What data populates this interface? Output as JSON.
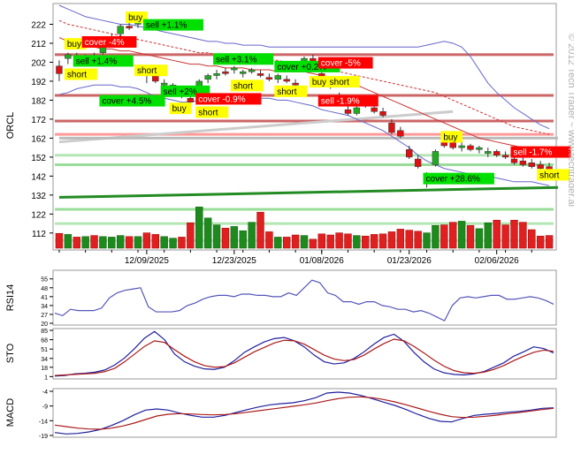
{
  "copyright": "© 2012 Tech Trader ~ www.techtrader.ai",
  "chart_data": [
    {
      "type": "candlestick",
      "ylabel": "ORCL",
      "ylim": [
        104,
        232
      ],
      "yticks": [
        112,
        122,
        132,
        142,
        152,
        162,
        172,
        182,
        192,
        202,
        212,
        222
      ],
      "xtick_labels": [
        "12/09/2025",
        "12/23/2025",
        "01/08/2026",
        "01/23/2026",
        "02/06/2026"
      ],
      "xtick_index": [
        10,
        20,
        30,
        40,
        50
      ],
      "candles": [
        {
          "o": 200,
          "h": 203,
          "l": 192,
          "c": 196
        },
        {
          "o": 204,
          "h": 207,
          "l": 201,
          "c": 206
        },
        {
          "o": 205,
          "h": 207,
          "l": 202,
          "c": 203
        },
        {
          "o": 203,
          "h": 206,
          "l": 201,
          "c": 204
        },
        {
          "o": 205,
          "h": 207,
          "l": 203,
          "c": 204
        },
        {
          "o": 207,
          "h": 211,
          "l": 206,
          "c": 210
        },
        {
          "o": 214,
          "h": 217,
          "l": 212,
          "c": 215
        },
        {
          "o": 217,
          "h": 222,
          "l": 215,
          "c": 221
        },
        {
          "o": 221,
          "h": 224,
          "l": 219,
          "c": 220
        },
        {
          "o": 222,
          "h": 225,
          "l": 220,
          "c": 223
        },
        {
          "o": 196,
          "h": 200,
          "l": 191,
          "c": 195
        },
        {
          "o": 196,
          "h": 198,
          "l": 191,
          "c": 192
        },
        {
          "o": 190,
          "h": 193,
          "l": 187,
          "c": 191
        },
        {
          "o": 188,
          "h": 191,
          "l": 186,
          "c": 190
        },
        {
          "o": 187,
          "h": 189,
          "l": 183,
          "c": 184
        },
        {
          "o": 183,
          "h": 186,
          "l": 179,
          "c": 181
        },
        {
          "o": 182,
          "h": 193,
          "l": 181,
          "c": 192
        },
        {
          "o": 193,
          "h": 196,
          "l": 191,
          "c": 195
        },
        {
          "o": 195,
          "h": 198,
          "l": 193,
          "c": 196
        },
        {
          "o": 197,
          "h": 199,
          "l": 195,
          "c": 196
        },
        {
          "o": 198,
          "h": 200,
          "l": 196,
          "c": 199
        },
        {
          "o": 196,
          "h": 198,
          "l": 194,
          "c": 197
        },
        {
          "o": 197,
          "h": 199,
          "l": 196,
          "c": 198
        },
        {
          "o": 196,
          "h": 198,
          "l": 194,
          "c": 195
        },
        {
          "o": 194,
          "h": 196,
          "l": 192,
          "c": 193
        },
        {
          "o": 193,
          "h": 196,
          "l": 191,
          "c": 195
        },
        {
          "o": 193,
          "h": 195,
          "l": 191,
          "c": 192
        },
        {
          "o": 191,
          "h": 193,
          "l": 189,
          "c": 190
        },
        {
          "o": 198,
          "h": 205,
          "l": 197,
          "c": 204
        },
        {
          "o": 204,
          "h": 206,
          "l": 201,
          "c": 202
        },
        {
          "o": 196,
          "h": 198,
          "l": 193,
          "c": 194
        },
        {
          "o": 191,
          "h": 193,
          "l": 188,
          "c": 189
        },
        {
          "o": 184,
          "h": 186,
          "l": 181,
          "c": 182
        },
        {
          "o": 177,
          "h": 179,
          "l": 174,
          "c": 175
        },
        {
          "o": 175,
          "h": 179,
          "l": 174,
          "c": 178
        },
        {
          "o": 180,
          "h": 182,
          "l": 178,
          "c": 179
        },
        {
          "o": 178,
          "h": 180,
          "l": 175,
          "c": 176
        },
        {
          "o": 176,
          "h": 178,
          "l": 173,
          "c": 174
        },
        {
          "o": 170,
          "h": 172,
          "l": 164,
          "c": 165
        },
        {
          "o": 166,
          "h": 168,
          "l": 162,
          "c": 163
        },
        {
          "o": 156,
          "h": 158,
          "l": 151,
          "c": 152
        },
        {
          "o": 151,
          "h": 153,
          "l": 146,
          "c": 147
        },
        {
          "o": 140,
          "h": 144,
          "l": 136,
          "c": 141
        },
        {
          "o": 148,
          "h": 156,
          "l": 147,
          "c": 155
        },
        {
          "o": 162,
          "h": 164,
          "l": 157,
          "c": 158
        },
        {
          "o": 160,
          "h": 162,
          "l": 156,
          "c": 157
        },
        {
          "o": 157,
          "h": 160,
          "l": 155,
          "c": 158
        },
        {
          "o": 158,
          "h": 159,
          "l": 155,
          "c": 156
        },
        {
          "o": 156,
          "h": 158,
          "l": 154,
          "c": 157
        },
        {
          "o": 154,
          "h": 157,
          "l": 152,
          "c": 155
        },
        {
          "o": 155,
          "h": 156,
          "l": 152,
          "c": 153
        },
        {
          "o": 153,
          "h": 155,
          "l": 151,
          "c": 152
        },
        {
          "o": 151,
          "h": 153,
          "l": 148,
          "c": 149
        },
        {
          "o": 150,
          "h": 152,
          "l": 147,
          "c": 148
        },
        {
          "o": 149,
          "h": 151,
          "l": 146,
          "c": 147
        },
        {
          "o": 148,
          "h": 150,
          "l": 145,
          "c": 146
        },
        {
          "o": 147,
          "h": 149,
          "l": 144,
          "c": 145
        }
      ],
      "volume": [
        0.28,
        0.26,
        0.21,
        0.22,
        0.24,
        0.22,
        0.21,
        0.24,
        0.22,
        0.22,
        0.29,
        0.26,
        0.22,
        0.19,
        0.21,
        0.48,
        0.78,
        0.57,
        0.44,
        0.38,
        0.41,
        0.33,
        0.49,
        0.68,
        0.31,
        0.21,
        0.21,
        0.25,
        0.24,
        0.17,
        0.27,
        0.25,
        0.29,
        0.27,
        0.24,
        0.23,
        0.26,
        0.27,
        0.31,
        0.36,
        0.34,
        0.32,
        0.29,
        0.43,
        0.44,
        0.49,
        0.51,
        0.43,
        0.37,
        0.48,
        0.53,
        0.44,
        0.53,
        0.49,
        0.35,
        0.23,
        0.24
      ],
      "horizontal_levels": [
        {
          "value": 206,
          "color": "#cc6666"
        },
        {
          "value": 184.5,
          "color": "#cc6666"
        },
        {
          "value": 171,
          "color": "#cc6666"
        },
        {
          "value": 164,
          "color": "#ff9999"
        },
        {
          "value": 153,
          "color": "#b3e6b3"
        },
        {
          "value": 148,
          "color": "#99dd99"
        },
        {
          "value": 124.5,
          "color": "#99dd99"
        },
        {
          "value": 117,
          "color": "#b3e6b3"
        },
        {
          "value": 108,
          "color": "#cceecc"
        }
      ],
      "trendlines": [
        {
          "from": [
            0,
            130.8
          ],
          "to": [
            57,
            136
          ],
          "color": "#228b22"
        },
        {
          "from": [
            0,
            160
          ],
          "to": [
            45,
            176
          ],
          "color": "#cccccc"
        },
        {
          "from": [
            0,
            162
          ],
          "to": [
            57,
            162
          ],
          "color": "#bbbbbb"
        }
      ],
      "bollinger_upper": [
        232,
        230,
        228,
        226,
        225,
        224,
        223,
        222,
        222,
        221,
        220,
        219,
        218,
        217,
        216,
        215,
        214,
        213,
        213,
        212,
        212,
        211,
        211,
        211,
        210,
        210,
        210,
        210,
        210,
        210,
        210,
        210,
        210,
        210,
        210,
        210,
        210,
        210,
        210,
        210,
        210,
        210,
        211,
        212,
        213,
        212,
        210,
        205,
        198,
        191,
        186,
        182,
        178,
        175,
        172,
        169,
        167
      ],
      "bollinger_lower": [
        185,
        186,
        188,
        189,
        190,
        190,
        190,
        189,
        189,
        188,
        186,
        184,
        183,
        182,
        181,
        181,
        182,
        183,
        183,
        184,
        184,
        184,
        184,
        183,
        183,
        182,
        182,
        181,
        180,
        179,
        177,
        176,
        175,
        174,
        172,
        170,
        168,
        166,
        163,
        160,
        157,
        153,
        150,
        148,
        146,
        145,
        144,
        143,
        143,
        142,
        141,
        140,
        139,
        139,
        139,
        138,
        137
      ],
      "ma_fast": [
        215,
        213,
        212,
        211,
        210,
        209,
        209,
        208,
        208,
        207,
        206,
        205,
        204,
        203,
        202,
        201,
        201,
        200,
        200,
        199,
        199,
        199,
        198,
        198,
        198,
        197,
        197,
        197,
        197,
        196,
        195,
        194,
        193,
        191,
        190,
        188,
        186,
        184,
        182,
        180,
        178,
        176,
        174,
        172,
        170,
        168,
        166,
        164,
        162,
        161,
        160,
        159,
        158,
        157,
        156,
        155,
        154
      ],
      "ma_slow": [
        224,
        222,
        221,
        220,
        219,
        218,
        217,
        216,
        215,
        214,
        213,
        212,
        211,
        210,
        209,
        208,
        207,
        207,
        206,
        206,
        205,
        205,
        204,
        204,
        203,
        203,
        202,
        202,
        201,
        200,
        199,
        198,
        197,
        196,
        195,
        194,
        193,
        192,
        191,
        190,
        189,
        188,
        187,
        186,
        184,
        182,
        180,
        178,
        176,
        174,
        172,
        170,
        168,
        167,
        166,
        165,
        164
      ],
      "signals": [
        {
          "i": 1,
          "price": 211,
          "text": "buy",
          "type": "buy"
        },
        {
          "i": 2,
          "price": 202,
          "text": "sell +1.4%",
          "type": "win"
        },
        {
          "i": 1,
          "price": 195,
          "text": "short",
          "type": "short"
        },
        {
          "i": 3,
          "price": 212,
          "text": "cover -4%",
          "type": "loss"
        },
        {
          "i": 8,
          "price": 225,
          "text": "buy",
          "type": "buy"
        },
        {
          "i": 10,
          "price": 221,
          "text": "sell +1.1%",
          "type": "win"
        },
        {
          "i": 9,
          "price": 197,
          "text": "short",
          "type": "short"
        },
        {
          "i": 5,
          "price": 181,
          "text": "cover +4.5%",
          "type": "win"
        },
        {
          "i": 12,
          "price": 186,
          "text": "sell +2%",
          "type": "win"
        },
        {
          "i": 13,
          "price": 177,
          "text": "buy",
          "type": "buy"
        },
        {
          "i": 16,
          "price": 182,
          "text": "buy",
          "type": "buy"
        },
        {
          "i": 16,
          "price": 175,
          "text": "short",
          "type": "short"
        },
        {
          "i": 16,
          "price": 182,
          "text": "cover -0.9%",
          "type": "loss"
        },
        {
          "i": 18,
          "price": 203,
          "text": "sell +3.1%",
          "type": "win"
        },
        {
          "i": 20,
          "price": 189,
          "text": "short",
          "type": "short"
        },
        {
          "i": 25,
          "price": 199,
          "text": "cover +0.2%",
          "type": "win"
        },
        {
          "i": 25,
          "price": 186,
          "text": "short",
          "type": "short"
        },
        {
          "i": 30,
          "price": 201,
          "text": "cover -5%",
          "type": "loss"
        },
        {
          "i": 29,
          "price": 191,
          "text": "buy",
          "type": "buy"
        },
        {
          "i": 31,
          "price": 191,
          "text": "short",
          "type": "short"
        },
        {
          "i": 30,
          "price": 181,
          "text": "sell -1.9%",
          "type": "loss"
        },
        {
          "i": 44,
          "price": 162,
          "text": "buy",
          "type": "buy"
        },
        {
          "i": 52,
          "price": 154,
          "text": "sell -1.7%",
          "type": "loss"
        },
        {
          "i": 42,
          "price": 140,
          "text": "cover +28.6%",
          "type": "win"
        },
        {
          "i": 55,
          "price": 142,
          "text": "short",
          "type": "short"
        }
      ]
    },
    {
      "type": "line",
      "ylabel": "RSI14",
      "ylim": [
        20,
        59
      ],
      "yticks": [
        20,
        27,
        34,
        41,
        48,
        55
      ],
      "series": [
        {
          "values": [
            28,
            26,
            31,
            30,
            30,
            30,
            32,
            40,
            44,
            46,
            47,
            48,
            33,
            29,
            29,
            29,
            30,
            34,
            36,
            39,
            41,
            42,
            42,
            41,
            43,
            43,
            42,
            42,
            41,
            41,
            44,
            42,
            48,
            54,
            52,
            44,
            42,
            37,
            37,
            35,
            37,
            37,
            34,
            33,
            31,
            31,
            29,
            30,
            28,
            25,
            22,
            34,
            40,
            41,
            40,
            41,
            42,
            42,
            39,
            39,
            40,
            41,
            40,
            38,
            35
          ]
        }
      ]
    },
    {
      "type": "line",
      "ylabel": "STO",
      "ylim": [
        0,
        85
      ],
      "yticks": [
        1,
        18,
        34,
        51,
        68,
        85
      ],
      "series": [
        {
          "values": [
            2,
            3,
            6,
            7,
            9,
            13,
            22,
            35,
            52,
            71,
            83,
            68,
            42,
            28,
            20,
            15,
            14,
            18,
            30,
            45,
            55,
            64,
            70,
            72,
            66,
            55,
            40,
            28,
            24,
            26,
            34,
            46,
            60,
            72,
            78,
            65,
            45,
            28,
            15,
            8,
            5,
            4,
            6,
            10,
            18,
            26,
            38,
            46,
            55,
            52,
            44
          ]
        },
        {
          "values": [
            3,
            4,
            5,
            6,
            7,
            10,
            16,
            28,
            42,
            56,
            66,
            63,
            50,
            38,
            28,
            21,
            18,
            19,
            26,
            36,
            46,
            54,
            62,
            67,
            66,
            60,
            50,
            40,
            33,
            30,
            32,
            40,
            51,
            61,
            69,
            66,
            56,
            44,
            31,
            20,
            12,
            8,
            7,
            9,
            14,
            21,
            30,
            38,
            45,
            49,
            47
          ]
        }
      ]
    },
    {
      "type": "line",
      "ylabel": "MACD",
      "ylim": [
        -19,
        -4
      ],
      "yticks": [
        -19,
        -14,
        -9,
        -4
      ],
      "series": [
        {
          "values": [
            -18,
            -18.5,
            -18.3,
            -17.8,
            -17,
            -15.6,
            -14,
            -12,
            -10.4,
            -10,
            -10.4,
            -11.4,
            -12.2,
            -12.8,
            -12.8,
            -12.2,
            -11.2,
            -10.2,
            -9.3,
            -8.6,
            -8.2,
            -7.9,
            -7.2,
            -6.2,
            -4.6,
            -4.3,
            -4.6,
            -5.4,
            -6.5,
            -7.7,
            -8.8,
            -10.2,
            -11.8,
            -13.2,
            -14.2,
            -14.4,
            -13.2,
            -12.2,
            -11.8,
            -11.5,
            -11.1,
            -10.8,
            -10.4,
            -9.8,
            -9.6
          ]
        },
        {
          "values": [
            -15.5,
            -16,
            -16.5,
            -16.8,
            -16.9,
            -16.5,
            -15.8,
            -14.8,
            -13.6,
            -12.4,
            -11.8,
            -11.6,
            -11.7,
            -11.9,
            -12,
            -11.9,
            -11.6,
            -11.1,
            -10.6,
            -10.1,
            -9.6,
            -9.1,
            -8.6,
            -8,
            -7.2,
            -6.5,
            -6,
            -5.9,
            -6.2,
            -6.8,
            -7.6,
            -8.6,
            -9.7,
            -10.8,
            -11.8,
            -12.6,
            -12.9,
            -12.8,
            -12.5,
            -12.1,
            -11.6,
            -11.2,
            -10.7,
            -10.2,
            -9.8
          ]
        }
      ]
    }
  ]
}
